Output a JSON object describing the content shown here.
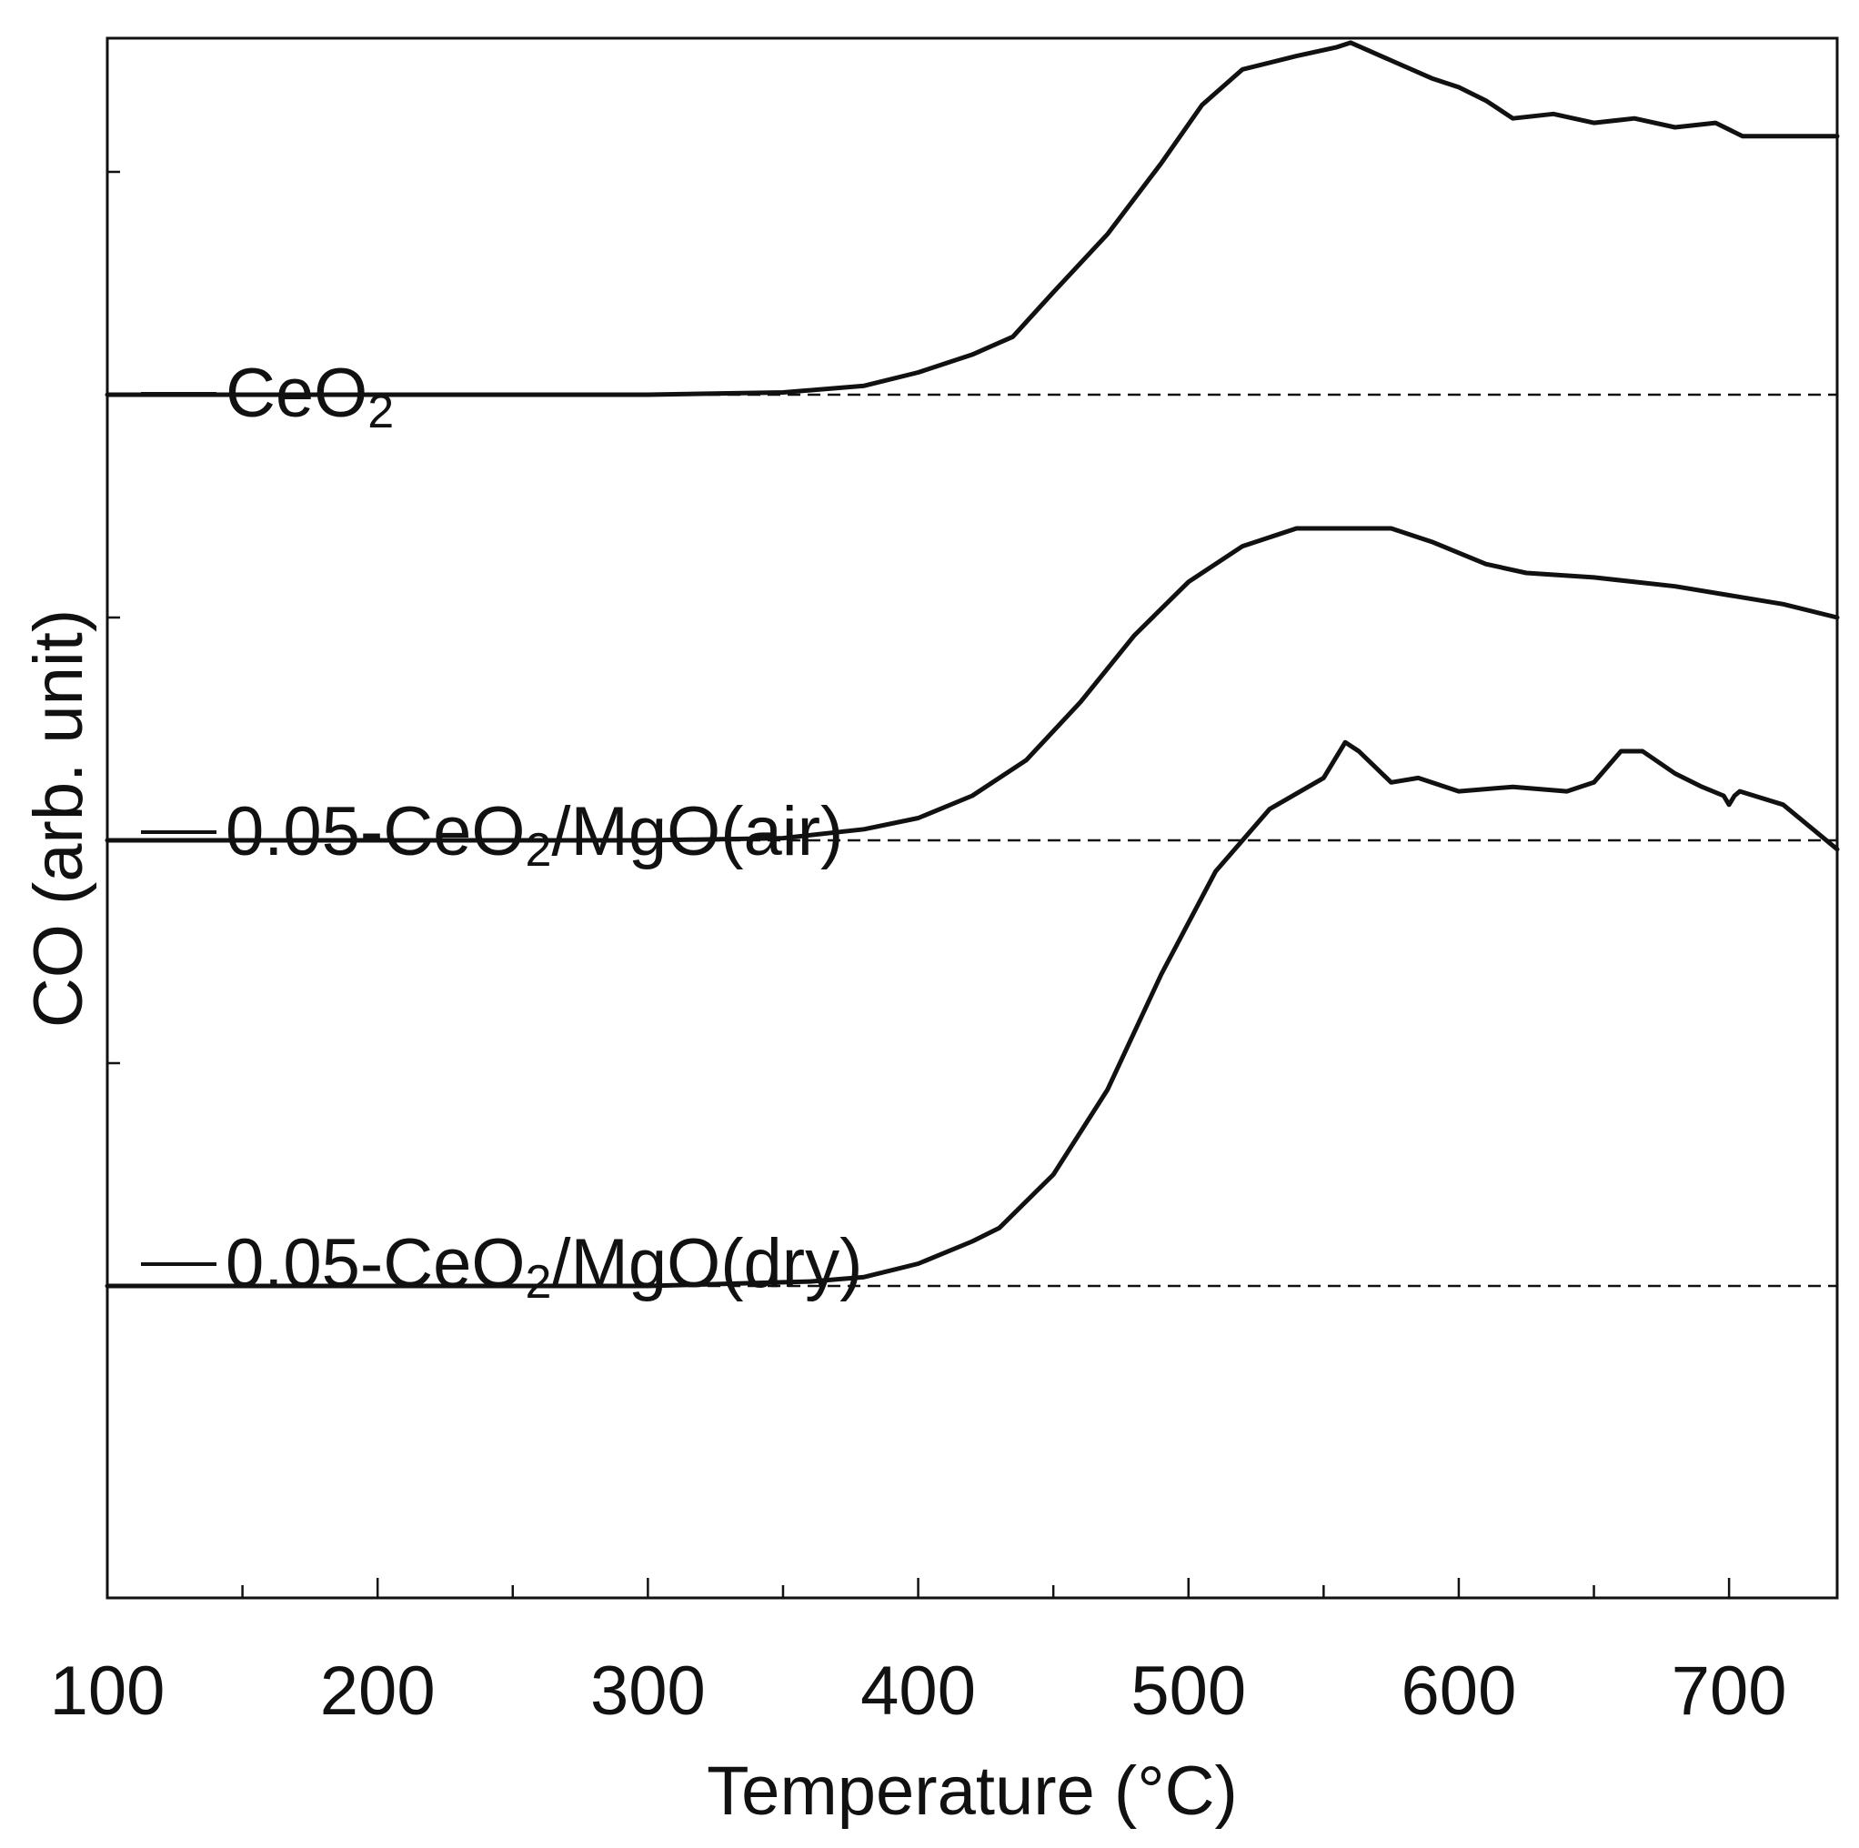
{
  "chart_data": {
    "type": "line",
    "xlabel": "Temperature (°C)",
    "ylabel": "CO (arb. unit)",
    "xlim": [
      100,
      740
    ],
    "ylim": [
      -0.7,
      2.8
    ],
    "x_major_ticks": [
      100,
      200,
      300,
      400,
      500,
      600,
      700
    ],
    "x_minor_ticks": [
      150,
      250,
      350,
      450,
      550,
      650
    ],
    "y_ticks": [
      0.5,
      1.5,
      2.5
    ],
    "grid": false,
    "legend": "inline-left",
    "series": [
      {
        "name": "CeO₂",
        "label_main": "CeO",
        "label_sub": "2",
        "label_tail": "",
        "baseline": 2,
        "x": [
          100,
          200,
          300,
          350,
          380,
          400,
          420,
          435,
          450,
          470,
          490,
          505,
          520,
          540,
          555,
          560,
          575,
          590,
          600,
          610,
          620,
          635,
          650,
          665,
          680,
          695,
          705,
          720,
          740
        ],
        "y": [
          2.0,
          2.0,
          2.0,
          2.005,
          2.02,
          2.05,
          2.09,
          2.13,
          2.23,
          2.36,
          2.52,
          2.65,
          2.73,
          2.76,
          2.78,
          2.79,
          2.75,
          2.71,
          2.69,
          2.66,
          2.62,
          2.63,
          2.61,
          2.62,
          2.6,
          2.61,
          2.58,
          2.58,
          2.58
        ]
      },
      {
        "name": "0.05-CeO₂/MgO(air)",
        "label_main": "0.05-CeO",
        "label_sub": "2",
        "label_tail": "/MgO(air)",
        "baseline": 1,
        "x": [
          100,
          200,
          300,
          350,
          380,
          400,
          420,
          440,
          460,
          480,
          500,
          520,
          540,
          560,
          575,
          590,
          610,
          625,
          650,
          680,
          700,
          720,
          740
        ],
        "y": [
          1.0,
          1.0,
          1.0,
          1.005,
          1.025,
          1.05,
          1.1,
          1.18,
          1.31,
          1.46,
          1.58,
          1.66,
          1.7,
          1.7,
          1.7,
          1.67,
          1.62,
          1.6,
          1.59,
          1.57,
          1.55,
          1.53,
          1.5
        ]
      },
      {
        "name": "0.05-CeO₂/MgO(dry)",
        "label_main": "0.05-CeO",
        "label_sub": "2",
        "label_tail": "/MgO(dry)",
        "baseline": 0,
        "x": [
          100,
          200,
          300,
          360,
          380,
          400,
          420,
          430,
          450,
          470,
          490,
          510,
          530,
          550,
          558,
          563,
          575,
          585,
          600,
          620,
          640,
          650,
          660,
          668,
          680,
          690,
          698,
          700,
          702,
          704,
          720,
          740
        ],
        "y": [
          0.0,
          0.0,
          0.0,
          0.01,
          0.02,
          0.05,
          0.1,
          0.13,
          0.25,
          0.44,
          0.7,
          0.93,
          1.07,
          1.14,
          1.22,
          1.2,
          1.13,
          1.14,
          1.11,
          1.12,
          1.11,
          1.13,
          1.2,
          1.2,
          1.15,
          1.12,
          1.1,
          1.08,
          1.1,
          1.11,
          1.08,
          0.98
        ]
      }
    ]
  }
}
